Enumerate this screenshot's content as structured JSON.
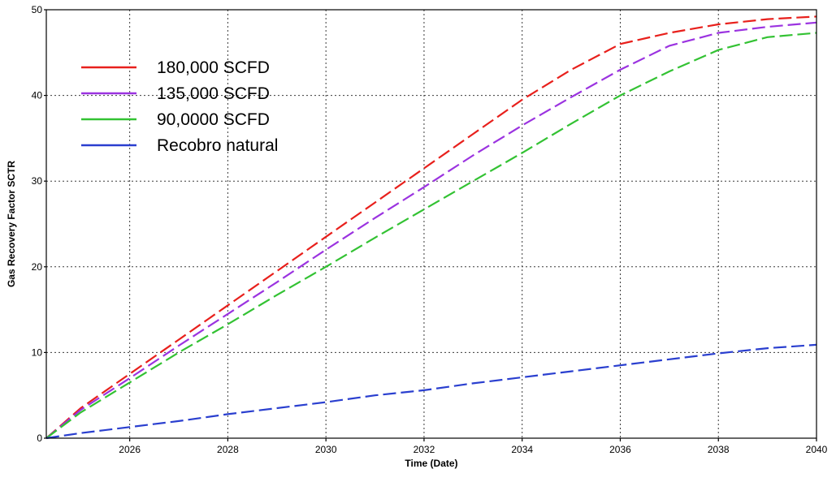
{
  "chart_data": {
    "type": "line",
    "title": "",
    "xlabel": "Time (Date)",
    "ylabel": "Gas Recovery Factor SCTR",
    "xlim": [
      2024.3,
      2040
    ],
    "ylim": [
      0,
      50
    ],
    "xticks": [
      2026,
      2028,
      2030,
      2032,
      2034,
      2036,
      2038,
      2040
    ],
    "yticks": [
      0,
      10,
      20,
      30,
      40,
      50
    ],
    "grid": true,
    "legend_position": "top-left",
    "series": [
      {
        "name": "180,000 SCFD",
        "color": "#e8201c",
        "x": [
          2024.3,
          2025,
          2026,
          2027,
          2028,
          2029,
          2030,
          2031,
          2032,
          2033,
          2034,
          2035,
          2036,
          2037,
          2038,
          2039,
          2040
        ],
        "y": [
          0,
          3.5,
          7.5,
          11.5,
          15.5,
          19.5,
          23.5,
          27.5,
          31.5,
          35.5,
          39.5,
          43.0,
          46.0,
          47.3,
          48.3,
          48.9,
          49.2
        ]
      },
      {
        "name": "135,000 SCFD",
        "color": "#9b33e0",
        "x": [
          2024.3,
          2025,
          2026,
          2027,
          2028,
          2029,
          2030,
          2031,
          2032,
          2033,
          2034,
          2035,
          2036,
          2037,
          2038,
          2039,
          2040
        ],
        "y": [
          0,
          3.3,
          7.0,
          10.8,
          14.5,
          18.2,
          22.0,
          25.7,
          29.3,
          33.0,
          36.5,
          39.8,
          43.0,
          45.8,
          47.3,
          48.0,
          48.5
        ]
      },
      {
        "name": "90,0000 SCFD",
        "color": "#33c233",
        "x": [
          2024.3,
          2025,
          2026,
          2027,
          2028,
          2029,
          2030,
          2031,
          2032,
          2033,
          2034,
          2035,
          2036,
          2037,
          2038,
          2039,
          2040
        ],
        "y": [
          0,
          3.0,
          6.5,
          10.0,
          13.3,
          16.7,
          20.0,
          23.4,
          26.7,
          30.0,
          33.3,
          36.7,
          40.0,
          42.8,
          45.3,
          46.8,
          47.3
        ]
      },
      {
        "name": "Recobro natural",
        "color": "#2a3fcf",
        "x": [
          2024.3,
          2025,
          2026,
          2027,
          2028,
          2029,
          2030,
          2031,
          2032,
          2033,
          2034,
          2035,
          2036,
          2037,
          2038,
          2039,
          2040
        ],
        "y": [
          0,
          0.6,
          1.3,
          2.0,
          2.8,
          3.5,
          4.2,
          5.0,
          5.6,
          6.4,
          7.1,
          7.8,
          8.5,
          9.2,
          9.9,
          10.5,
          10.9
        ]
      }
    ]
  }
}
